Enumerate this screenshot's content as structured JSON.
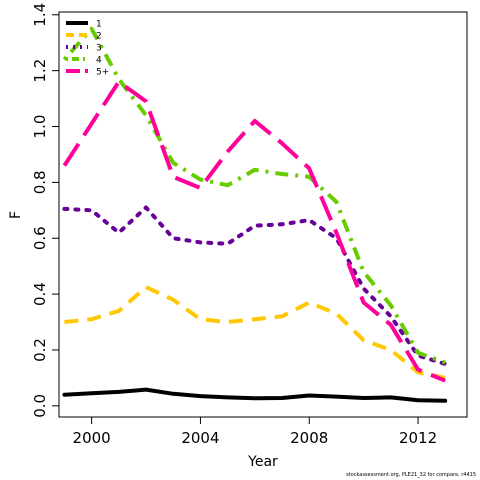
{
  "chart_data": {
    "type": "line",
    "title": "",
    "xlabel": "Year",
    "ylabel": "F",
    "xlim": [
      1998.8,
      2013.8
    ],
    "ylim": [
      -0.04,
      1.41
    ],
    "x_ticks": [
      2000,
      2004,
      2008,
      2012
    ],
    "y_ticks": [
      0.0,
      0.2,
      0.4,
      0.6,
      0.8,
      1.0,
      1.2,
      1.4
    ],
    "y_tick_labels": [
      "0.0",
      "0.2",
      "0.4",
      "0.6",
      "0.8",
      "1.0",
      "1.2",
      "1.4"
    ],
    "x": [
      1999,
      2000,
      2001,
      2002,
      2003,
      2004,
      2005,
      2006,
      2007,
      2008,
      2009,
      2010,
      2011,
      2012,
      2013
    ],
    "legend_position": "top-left",
    "grid": false,
    "series": [
      {
        "name": "1",
        "color": "#000000",
        "dash": "solid",
        "values": [
          0.04,
          0.045,
          0.05,
          0.058,
          0.043,
          0.035,
          0.03,
          0.027,
          0.028,
          0.037,
          0.033,
          0.028,
          0.03,
          0.02,
          0.018
        ]
      },
      {
        "name": "2",
        "color": "#FFC800",
        "dash": "dashed",
        "values": [
          0.3,
          0.31,
          0.34,
          0.425,
          0.38,
          0.31,
          0.3,
          0.31,
          0.32,
          0.37,
          0.33,
          0.235,
          0.2,
          0.12,
          0.1
        ]
      },
      {
        "name": "3",
        "color": "#660099",
        "dash": "dotted",
        "values": [
          0.705,
          0.7,
          0.62,
          0.71,
          0.6,
          0.585,
          0.58,
          0.645,
          0.65,
          0.665,
          0.6,
          0.42,
          0.32,
          0.18,
          0.15
        ]
      },
      {
        "name": "4",
        "color": "#66CC00",
        "dash": "dotdash",
        "values": [
          1.24,
          1.35,
          1.17,
          1.04,
          0.87,
          0.81,
          0.79,
          0.845,
          0.83,
          0.82,
          0.73,
          0.48,
          0.36,
          0.19,
          0.155
        ]
      },
      {
        "name": "5+",
        "color": "#FF0099",
        "dash": "longdash",
        "values": [
          0.86,
          1.01,
          1.16,
          1.09,
          0.82,
          0.78,
          0.91,
          1.02,
          0.94,
          0.85,
          0.62,
          0.37,
          0.29,
          0.13,
          0.09
        ]
      }
    ]
  },
  "footer_text": "stockassessment.org, PLE21_32 for compare, r4415"
}
